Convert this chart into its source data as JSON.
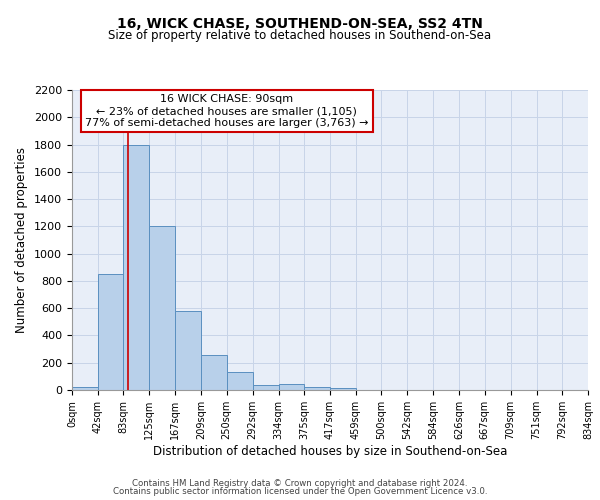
{
  "title1": "16, WICK CHASE, SOUTHEND-ON-SEA, SS2 4TN",
  "title2": "Size of property relative to detached houses in Southend-on-Sea",
  "xlabel": "Distribution of detached houses by size in Southend-on-Sea",
  "ylabel": "Number of detached properties",
  "footnote1": "Contains HM Land Registry data © Crown copyright and database right 2024.",
  "footnote2": "Contains public sector information licensed under the Open Government Licence v3.0.",
  "bin_edges": [
    0,
    42,
    83,
    125,
    167,
    209,
    250,
    292,
    334,
    375,
    417,
    459,
    500,
    542,
    584,
    626,
    667,
    709,
    751,
    792,
    834
  ],
  "bar_heights": [
    25,
    850,
    1800,
    1200,
    580,
    255,
    130,
    40,
    45,
    25,
    15,
    0,
    0,
    0,
    0,
    0,
    0,
    0,
    0,
    0
  ],
  "bar_color": "#b8d0ea",
  "bar_edge_color": "#5a8fc0",
  "grid_color": "#c8d4e8",
  "background_color": "#e8eef8",
  "property_size": 90,
  "property_label": "16 WICK CHASE: 90sqm",
  "annotation_line1": "← 23% of detached houses are smaller (1,105)",
  "annotation_line2": "77% of semi-detached houses are larger (3,763) →",
  "annotation_box_color": "#cc0000",
  "ylim": [
    0,
    2200
  ],
  "yticks": [
    0,
    200,
    400,
    600,
    800,
    1000,
    1200,
    1400,
    1600,
    1800,
    2000,
    2200
  ]
}
